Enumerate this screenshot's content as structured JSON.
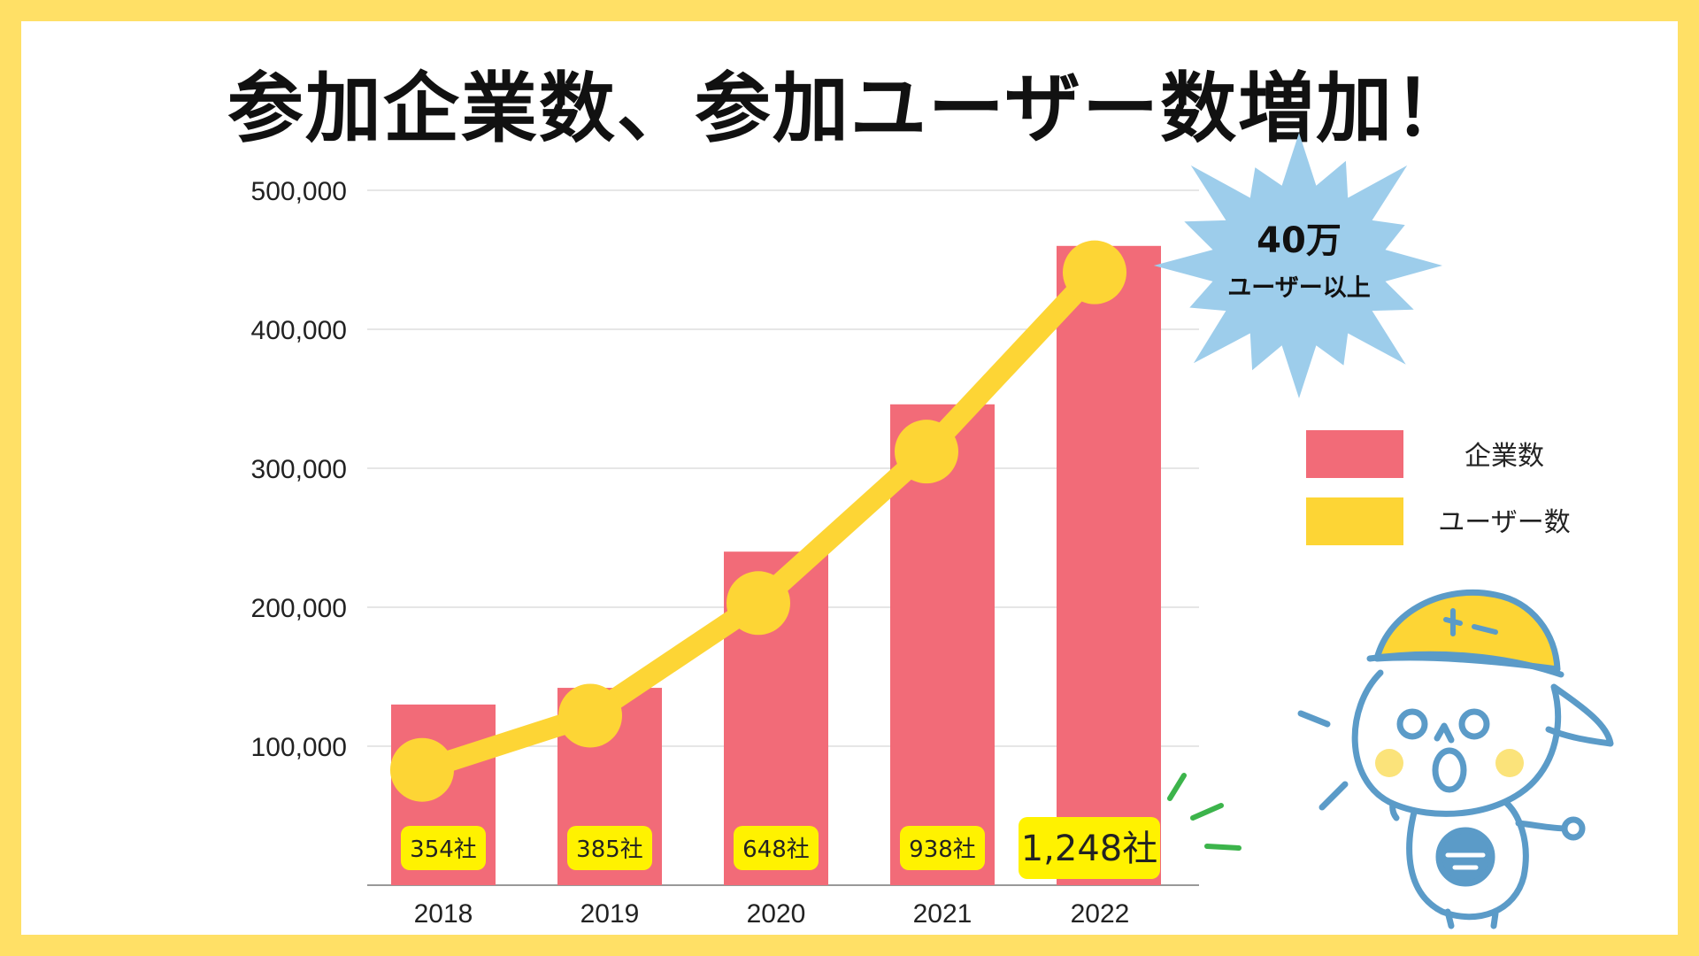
{
  "title": "参加企業数、参加ユーザー数増加！",
  "chart_data": {
    "type": "bar+line",
    "categories": [
      "2018",
      "2019",
      "2020",
      "2021",
      "2022"
    ],
    "yticks": [
      "500,000",
      "400,000",
      "300,000",
      "200,000",
      "100,000"
    ],
    "ytick_values": [
      500000,
      400000,
      300000,
      200000,
      100000
    ],
    "ylim": [
      0,
      500000
    ],
    "series": [
      {
        "name": "企業数",
        "kind": "bar",
        "color": "#f26b78",
        "values": [
          130000,
          142000,
          240000,
          346000,
          460000
        ],
        "labels": [
          "354社",
          "385社",
          "648社",
          "938社",
          "1,248社"
        ]
      },
      {
        "name": "ユーザー数",
        "kind": "line",
        "color": "#fdd535",
        "values": [
          83000,
          122000,
          203000,
          312000,
          441000
        ]
      }
    ],
    "legend": [
      "企業数",
      "ユーザー数"
    ],
    "annotation": {
      "big": "40万",
      "small": "ユーザー以上"
    }
  },
  "colors": {
    "border": "#ffe066",
    "bar": "#f26b78",
    "line": "#fdd535",
    "label_bg": "#fff200",
    "burst": "#9dcdeb",
    "mascot_line": "#5b9bc8",
    "helmet": "#fdd535",
    "accent_green": "#3cb44b"
  }
}
